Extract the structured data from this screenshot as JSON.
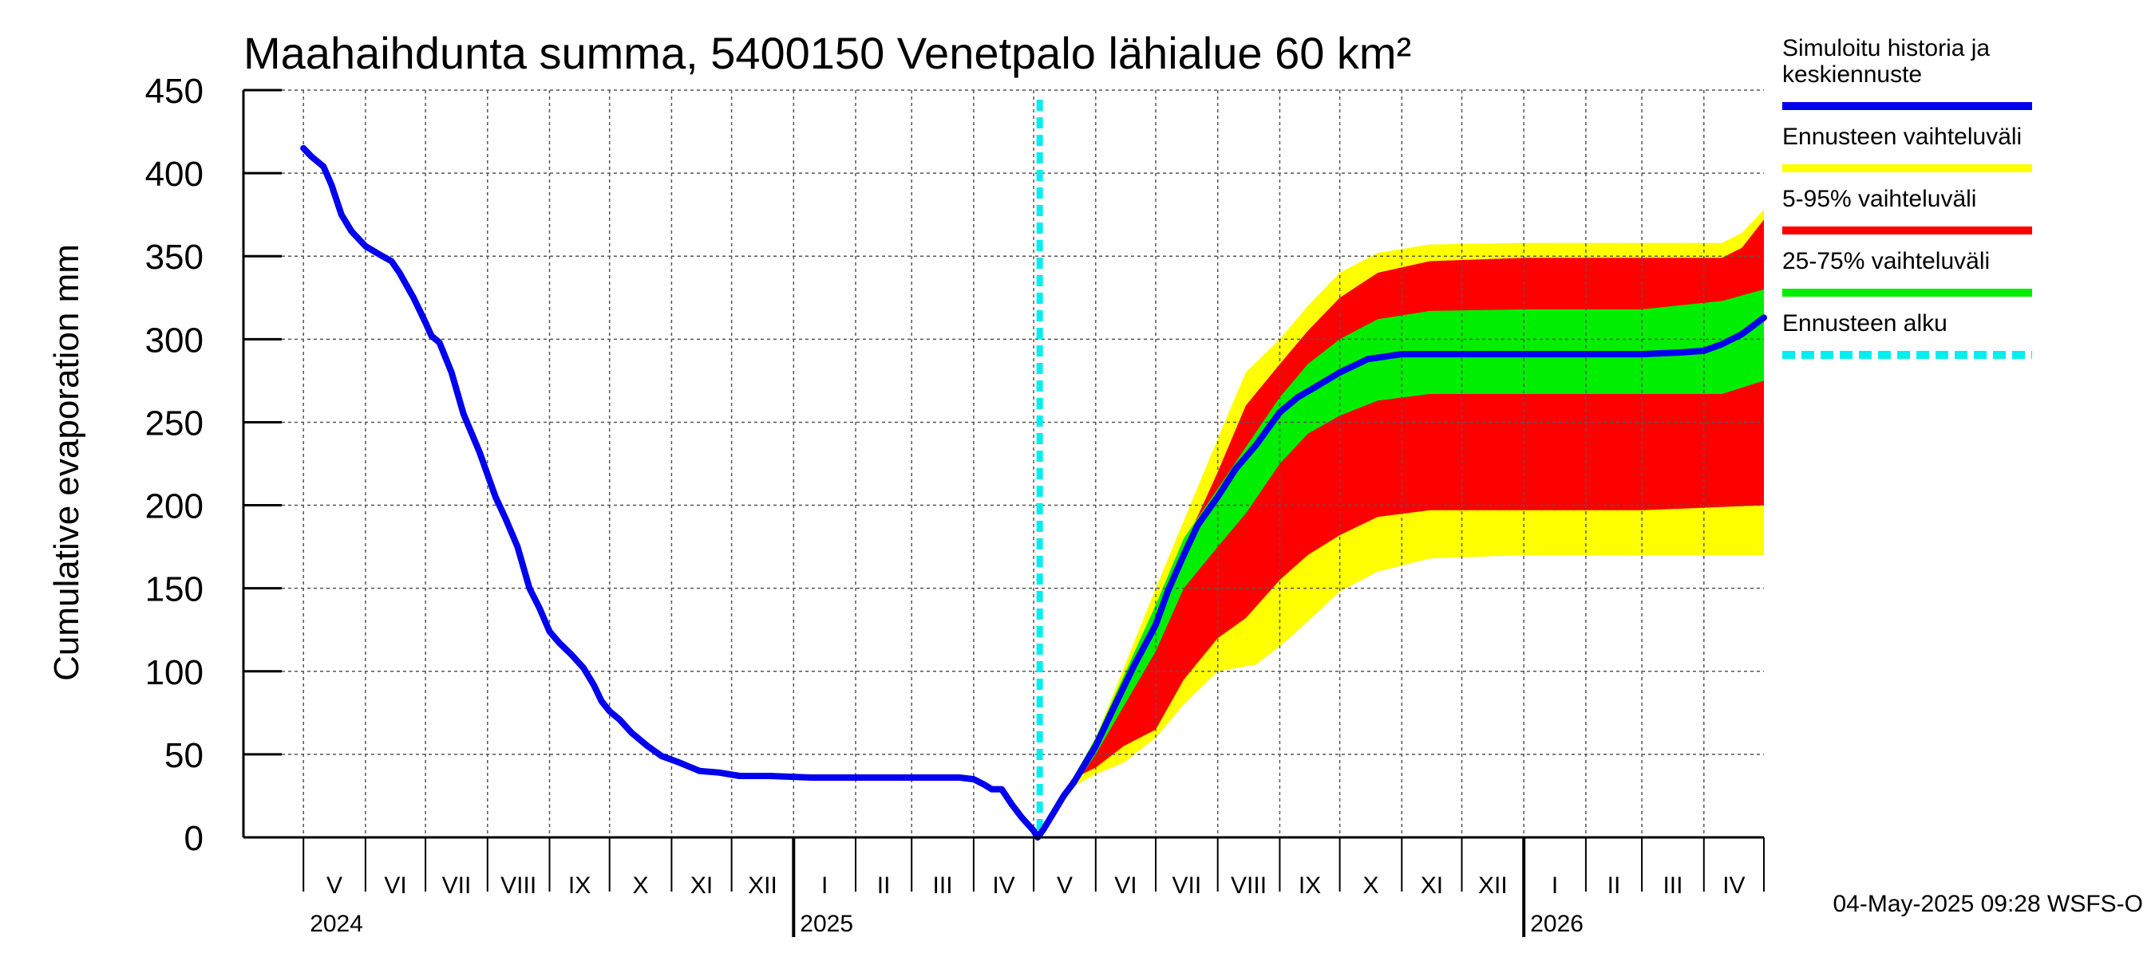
{
  "chart_data": {
    "type": "area",
    "title": "Maahaihdunta summa, 5400150 Venetpalo lähialue 60 km²",
    "ylabel": "Cumulative evaporation   mm",
    "xlabel": "",
    "ylim": [
      0,
      450
    ],
    "yticks": [
      0,
      50,
      100,
      150,
      200,
      250,
      300,
      350,
      400,
      450
    ],
    "grid": true,
    "legend_placement": "right",
    "x_range": [
      "2024-04-01",
      "2026-05-01"
    ],
    "months": [
      {
        "label": "V",
        "start": "2024-05-01"
      },
      {
        "label": "VI",
        "start": "2024-06-01"
      },
      {
        "label": "VII",
        "start": "2024-07-01"
      },
      {
        "label": "VIII",
        "start": "2024-08-01"
      },
      {
        "label": "IX",
        "start": "2024-09-01"
      },
      {
        "label": "X",
        "start": "2024-10-01"
      },
      {
        "label": "XI",
        "start": "2024-11-01"
      },
      {
        "label": "XII",
        "start": "2024-12-01"
      },
      {
        "label": "I",
        "start": "2025-01-01"
      },
      {
        "label": "II",
        "start": "2025-02-01"
      },
      {
        "label": "III",
        "start": "2025-03-01"
      },
      {
        "label": "IV",
        "start": "2025-04-01"
      },
      {
        "label": "V",
        "start": "2025-05-01"
      },
      {
        "label": "VI",
        "start": "2025-06-01"
      },
      {
        "label": "VII",
        "start": "2025-07-01"
      },
      {
        "label": "VIII",
        "start": "2025-08-01"
      },
      {
        "label": "IX",
        "start": "2025-09-01"
      },
      {
        "label": "X",
        "start": "2025-10-01"
      },
      {
        "label": "XI",
        "start": "2025-11-01"
      },
      {
        "label": "XII",
        "start": "2025-12-01"
      },
      {
        "label": "I",
        "start": "2026-01-01"
      },
      {
        "label": "II",
        "start": "2026-02-01"
      },
      {
        "label": "III",
        "start": "2026-03-01"
      },
      {
        "label": "IV",
        "start": "2026-04-01"
      }
    ],
    "years": [
      {
        "label": "2024",
        "at": "2024-05-01"
      },
      {
        "label": "2025",
        "at": "2025-01-01"
      },
      {
        "label": "2026",
        "at": "2026-01-01"
      }
    ],
    "forecast_start": "2025-05-04",
    "series": [
      {
        "name": "Simuloitu historia ja keskiennuste",
        "color": "#0000ee",
        "points": [
          [
            "2024-05-01",
            415
          ],
          [
            "2024-05-05",
            410
          ],
          [
            "2024-05-11",
            404
          ],
          [
            "2024-05-15",
            393
          ],
          [
            "2024-05-20",
            375
          ],
          [
            "2024-05-25",
            365
          ],
          [
            "2024-06-01",
            356
          ],
          [
            "2024-06-08",
            351
          ],
          [
            "2024-06-14",
            347
          ],
          [
            "2024-06-18",
            340
          ],
          [
            "2024-06-25",
            325
          ],
          [
            "2024-07-01",
            310
          ],
          [
            "2024-07-04",
            302
          ],
          [
            "2024-07-08",
            298
          ],
          [
            "2024-07-14",
            280
          ],
          [
            "2024-07-20",
            255
          ],
          [
            "2024-07-28",
            232
          ],
          [
            "2024-08-05",
            205
          ],
          [
            "2024-08-10",
            192
          ],
          [
            "2024-08-16",
            175
          ],
          [
            "2024-08-22",
            150
          ],
          [
            "2024-08-27",
            138
          ],
          [
            "2024-09-01",
            124
          ],
          [
            "2024-09-06",
            117
          ],
          [
            "2024-09-12",
            110
          ],
          [
            "2024-09-18",
            102
          ],
          [
            "2024-09-23",
            92
          ],
          [
            "2024-09-27",
            82
          ],
          [
            "2024-10-01",
            76
          ],
          [
            "2024-10-06",
            71
          ],
          [
            "2024-10-12",
            63
          ],
          [
            "2024-10-20",
            55
          ],
          [
            "2024-10-27",
            49
          ],
          [
            "2024-11-05",
            45
          ],
          [
            "2024-11-15",
            40
          ],
          [
            "2024-11-25",
            39
          ],
          [
            "2024-12-05",
            37
          ],
          [
            "2024-12-20",
            37
          ],
          [
            "2025-01-10",
            36
          ],
          [
            "2025-02-10",
            36
          ],
          [
            "2025-03-10",
            36
          ],
          [
            "2025-03-25",
            36
          ],
          [
            "2025-04-01",
            35
          ],
          [
            "2025-04-06",
            32
          ],
          [
            "2025-04-10",
            29
          ],
          [
            "2025-04-15",
            29
          ],
          [
            "2025-04-20",
            20
          ],
          [
            "2025-04-25",
            12
          ],
          [
            "2025-05-01",
            4
          ],
          [
            "2025-05-03",
            0
          ],
          [
            "2025-05-06",
            5
          ],
          [
            "2025-05-11",
            15
          ],
          [
            "2025-05-16",
            25
          ],
          [
            "2025-05-21",
            33
          ],
          [
            "2025-06-01",
            55
          ],
          [
            "2025-06-10",
            78
          ],
          [
            "2025-06-20",
            103
          ],
          [
            "2025-07-01",
            128
          ],
          [
            "2025-07-07",
            148
          ],
          [
            "2025-07-15",
            170
          ],
          [
            "2025-07-22",
            188
          ],
          [
            "2025-08-01",
            205
          ],
          [
            "2025-08-10",
            222
          ],
          [
            "2025-08-20",
            236
          ],
          [
            "2025-09-01",
            256
          ],
          [
            "2025-09-10",
            265
          ],
          [
            "2025-09-20",
            272
          ],
          [
            "2025-10-01",
            280
          ],
          [
            "2025-10-15",
            288
          ],
          [
            "2025-11-01",
            291
          ],
          [
            "2025-12-01",
            291
          ],
          [
            "2026-01-01",
            291
          ],
          [
            "2026-02-01",
            291
          ],
          [
            "2026-03-01",
            291
          ],
          [
            "2026-03-20",
            292
          ],
          [
            "2026-04-01",
            293
          ],
          [
            "2026-04-10",
            297
          ],
          [
            "2026-04-20",
            303
          ],
          [
            "2026-05-01",
            313
          ]
        ]
      }
    ],
    "bands": [
      {
        "name": "Ennusteen vaihteluväli",
        "color": "#ffff00",
        "upper": [
          [
            "2025-05-04",
            0
          ],
          [
            "2025-06-01",
            60
          ],
          [
            "2025-07-01",
            150
          ],
          [
            "2025-08-01",
            240
          ],
          [
            "2025-08-15",
            280
          ],
          [
            "2025-09-01",
            300
          ],
          [
            "2025-09-15",
            320
          ],
          [
            "2025-10-01",
            340
          ],
          [
            "2025-10-20",
            352
          ],
          [
            "2025-11-15",
            357
          ],
          [
            "2026-01-01",
            358
          ],
          [
            "2026-03-01",
            358
          ],
          [
            "2026-04-10",
            358
          ],
          [
            "2026-04-20",
            364
          ],
          [
            "2026-05-01",
            378
          ]
        ],
        "lower": [
          [
            "2025-05-04",
            0
          ],
          [
            "2025-05-20",
            30
          ],
          [
            "2025-06-01",
            38
          ],
          [
            "2025-06-15",
            45
          ],
          [
            "2025-07-01",
            60
          ],
          [
            "2025-07-15",
            80
          ],
          [
            "2025-08-01",
            100
          ],
          [
            "2025-08-20",
            104
          ],
          [
            "2025-09-01",
            115
          ],
          [
            "2025-09-15",
            130
          ],
          [
            "2025-10-01",
            148
          ],
          [
            "2025-10-20",
            160
          ],
          [
            "2025-11-15",
            168
          ],
          [
            "2026-01-01",
            170
          ],
          [
            "2026-03-01",
            170
          ],
          [
            "2026-05-01",
            170
          ]
        ]
      },
      {
        "name": "5-95% vaihteluväli",
        "color": "#ff0000",
        "upper": [
          [
            "2025-05-04",
            0
          ],
          [
            "2025-06-01",
            55
          ],
          [
            "2025-07-01",
            140
          ],
          [
            "2025-07-15",
            175
          ],
          [
            "2025-08-01",
            220
          ],
          [
            "2025-08-15",
            260
          ],
          [
            "2025-09-01",
            285
          ],
          [
            "2025-09-15",
            305
          ],
          [
            "2025-10-01",
            325
          ],
          [
            "2025-10-20",
            340
          ],
          [
            "2025-11-15",
            347
          ],
          [
            "2026-01-01",
            349
          ],
          [
            "2026-03-01",
            349
          ],
          [
            "2026-04-10",
            349
          ],
          [
            "2026-04-20",
            355
          ],
          [
            "2026-05-01",
            372
          ]
        ],
        "lower": [
          [
            "2025-05-04",
            0
          ],
          [
            "2025-05-20",
            35
          ],
          [
            "2025-06-01",
            42
          ],
          [
            "2025-06-15",
            55
          ],
          [
            "2025-07-01",
            65
          ],
          [
            "2025-07-15",
            95
          ],
          [
            "2025-08-01",
            120
          ],
          [
            "2025-08-15",
            132
          ],
          [
            "2025-09-01",
            155
          ],
          [
            "2025-09-15",
            170
          ],
          [
            "2025-10-01",
            182
          ],
          [
            "2025-10-20",
            193
          ],
          [
            "2025-11-15",
            197
          ],
          [
            "2026-01-01",
            197
          ],
          [
            "2026-03-01",
            197
          ],
          [
            "2026-05-01",
            200
          ]
        ]
      },
      {
        "name": "25-75% vaihteluväli",
        "color": "#00ee00",
        "upper": [
          [
            "2025-05-04",
            0
          ],
          [
            "2025-06-01",
            60
          ],
          [
            "2025-07-01",
            140
          ],
          [
            "2025-07-15",
            180
          ],
          [
            "2025-08-01",
            210
          ],
          [
            "2025-08-15",
            235
          ],
          [
            "2025-09-01",
            265
          ],
          [
            "2025-09-15",
            285
          ],
          [
            "2025-10-01",
            300
          ],
          [
            "2025-10-20",
            312
          ],
          [
            "2025-11-15",
            317
          ],
          [
            "2026-01-01",
            318
          ],
          [
            "2026-03-01",
            318
          ],
          [
            "2026-04-10",
            323
          ],
          [
            "2026-05-01",
            330
          ]
        ],
        "lower": [
          [
            "2025-05-04",
            0
          ],
          [
            "2025-06-01",
            50
          ],
          [
            "2025-07-01",
            112
          ],
          [
            "2025-07-15",
            150
          ],
          [
            "2025-08-01",
            175
          ],
          [
            "2025-08-15",
            195
          ],
          [
            "2025-09-01",
            225
          ],
          [
            "2025-09-15",
            243
          ],
          [
            "2025-10-01",
            254
          ],
          [
            "2025-10-20",
            263
          ],
          [
            "2025-11-15",
            267
          ],
          [
            "2026-01-01",
            267
          ],
          [
            "2026-03-01",
            267
          ],
          [
            "2026-04-10",
            267
          ],
          [
            "2026-05-01",
            275
          ]
        ]
      }
    ]
  },
  "legend": {
    "items": [
      {
        "label_lines": [
          "Simuloitu historia ja",
          "keskiennuste"
        ],
        "color": "#0000ee",
        "style": "solid"
      },
      {
        "label_lines": [
          "Ennusteen vaihteluväli"
        ],
        "color": "#ffff00",
        "style": "solid"
      },
      {
        "label_lines": [
          "5-95% vaihteluväli"
        ],
        "color": "#ff0000",
        "style": "solid"
      },
      {
        "label_lines": [
          "25-75% vaihteluväli"
        ],
        "color": "#00ee00",
        "style": "solid"
      },
      {
        "label_lines": [
          "Ennusteen alku"
        ],
        "color": "#00eeee",
        "style": "dashed"
      }
    ]
  },
  "footer": {
    "timestamp": "04-May-2025 09:28 WSFS-O"
  }
}
